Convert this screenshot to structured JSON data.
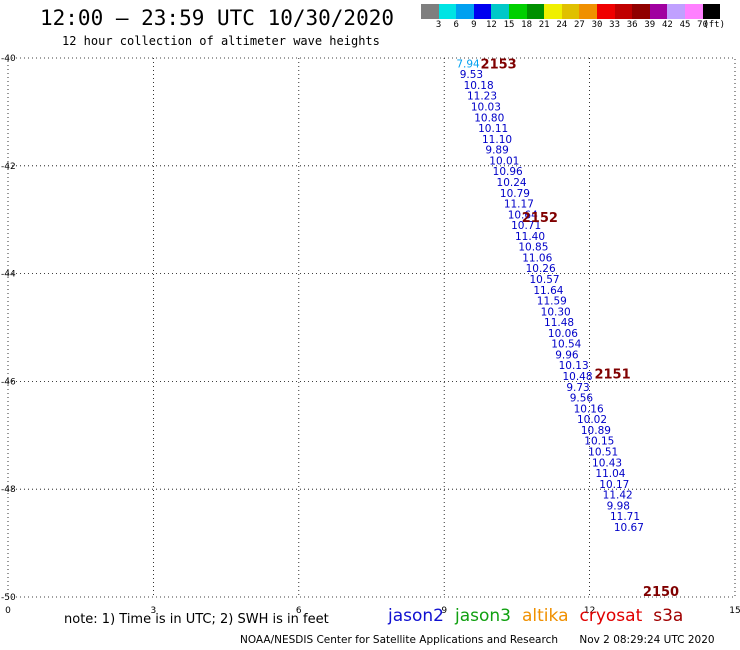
{
  "header": {
    "title": "12:00 – 23:59 UTC 10/30/2020",
    "subtitle": "12 hour collection of altimeter wave heights"
  },
  "scale": {
    "colors": [
      "#7f7f7f",
      "#00e4e4",
      "#00a0f0",
      "#0000f0",
      "#00c8c8",
      "#00d000",
      "#009000",
      "#f0f000",
      "#e0c000",
      "#f09000",
      "#f00000",
      "#c00000",
      "#900000",
      "#a000a0",
      "#c0a0ff",
      "#ff80ff",
      "#000000"
    ],
    "labels": [
      "3",
      "6",
      "9",
      "12",
      "15",
      "18",
      "21",
      "24",
      "27",
      "30",
      "33",
      "36",
      "39",
      "42",
      "45",
      "70",
      "(ft)"
    ]
  },
  "note": "note:  1) Time is in UTC;  2) SWH is in feet",
  "legend": [
    {
      "label": "jason2",
      "color": "#1010d0"
    },
    {
      "label": "jason3",
      "color": "#10a010"
    },
    {
      "label": "altika",
      "color": "#f09000"
    },
    {
      "label": "cryosat",
      "color": "#e00000"
    },
    {
      "label": "s3a",
      "color": "#a00000"
    }
  ],
  "credit": {
    "org": "NOAA/NESDIS Center for Satellite Applications and Research",
    "timestamp": "Nov  2 08:29:24 UTC 2020"
  },
  "chart_data": {
    "type": "scatter",
    "title": "12:00 – 23:59 UTC 10/30/2020",
    "xlim": [
      0,
      15
    ],
    "ylim": [
      -50,
      -40
    ],
    "x_ticks": [
      "0",
      "3",
      "6",
      "9",
      "12",
      "15"
    ],
    "y_ticks": [
      "-40",
      "-42",
      "-44",
      "-46",
      "-48",
      "-50"
    ],
    "grid": true,
    "series": [
      {
        "name": "jason2",
        "points": [
          {
            "x": 9.25,
            "y": -40.1,
            "v": "7.94"
          },
          {
            "x": 9.32,
            "y": -40.3,
            "v": "9.53"
          },
          {
            "x": 9.4,
            "y": -40.5,
            "v": "10.18"
          },
          {
            "x": 9.47,
            "y": -40.7,
            "v": "11.23"
          },
          {
            "x": 9.55,
            "y": -40.9,
            "v": "10.03"
          },
          {
            "x": 9.62,
            "y": -41.1,
            "v": "10.80"
          },
          {
            "x": 9.7,
            "y": -41.3,
            "v": "10.11"
          },
          {
            "x": 9.78,
            "y": -41.5,
            "v": "11.10"
          },
          {
            "x": 9.85,
            "y": -41.7,
            "v": "9.89"
          },
          {
            "x": 9.93,
            "y": -41.9,
            "v": "10.01"
          },
          {
            "x": 10.0,
            "y": -42.1,
            "v": "10.96"
          },
          {
            "x": 10.08,
            "y": -42.3,
            "v": "10.24"
          },
          {
            "x": 10.15,
            "y": -42.5,
            "v": "10.79"
          },
          {
            "x": 10.23,
            "y": -42.7,
            "v": "11.17"
          },
          {
            "x": 10.31,
            "y": -42.9,
            "v": "10.64"
          },
          {
            "x": 10.38,
            "y": -43.1,
            "v": "10.71"
          },
          {
            "x": 10.46,
            "y": -43.3,
            "v": "11.40"
          },
          {
            "x": 10.53,
            "y": -43.5,
            "v": "10.85"
          },
          {
            "x": 10.61,
            "y": -43.7,
            "v": "11.06"
          },
          {
            "x": 10.68,
            "y": -43.9,
            "v": "10.26"
          },
          {
            "x": 10.76,
            "y": -44.1,
            "v": "10.57"
          },
          {
            "x": 10.84,
            "y": -44.3,
            "v": "11.64"
          },
          {
            "x": 10.91,
            "y": -44.5,
            "v": "11.59"
          },
          {
            "x": 10.99,
            "y": -44.7,
            "v": "10.30"
          },
          {
            "x": 11.06,
            "y": -44.9,
            "v": "11.48"
          },
          {
            "x": 11.14,
            "y": -45.1,
            "v": "10.06"
          },
          {
            "x": 11.21,
            "y": -45.3,
            "v": "10.54"
          },
          {
            "x": 11.29,
            "y": -45.5,
            "v": "9.96"
          },
          {
            "x": 11.36,
            "y": -45.7,
            "v": "10.13"
          },
          {
            "x": 11.44,
            "y": -45.9,
            "v": "10.48"
          },
          {
            "x": 11.52,
            "y": -46.1,
            "v": "9.73"
          },
          {
            "x": 11.59,
            "y": -46.3,
            "v": "9.56"
          },
          {
            "x": 11.67,
            "y": -46.5,
            "v": "10.16"
          },
          {
            "x": 11.74,
            "y": -46.7,
            "v": "10.02"
          },
          {
            "x": 11.82,
            "y": -46.9,
            "v": "10.89"
          },
          {
            "x": 11.89,
            "y": -47.1,
            "v": "10.15"
          },
          {
            "x": 11.97,
            "y": -47.3,
            "v": "10.51"
          },
          {
            "x": 12.05,
            "y": -47.5,
            "v": "10.43"
          },
          {
            "x": 12.12,
            "y": -47.7,
            "v": "11.04"
          },
          {
            "x": 12.2,
            "y": -47.9,
            "v": "10.17"
          },
          {
            "x": 12.27,
            "y": -48.1,
            "v": "11.42"
          },
          {
            "x": 12.35,
            "y": -48.3,
            "v": "9.98"
          },
          {
            "x": 12.42,
            "y": -48.5,
            "v": "11.71"
          },
          {
            "x": 12.5,
            "y": -48.7,
            "v": "10.67"
          }
        ]
      }
    ],
    "time_labels": [
      {
        "x": 9.75,
        "y": -40.1,
        "text": "2153"
      },
      {
        "x": 10.6,
        "y": -42.95,
        "text": "2152"
      },
      {
        "x": 12.1,
        "y": -45.85,
        "text": "2151"
      },
      {
        "x": 13.1,
        "y": -50.0,
        "text": "2150"
      }
    ]
  }
}
